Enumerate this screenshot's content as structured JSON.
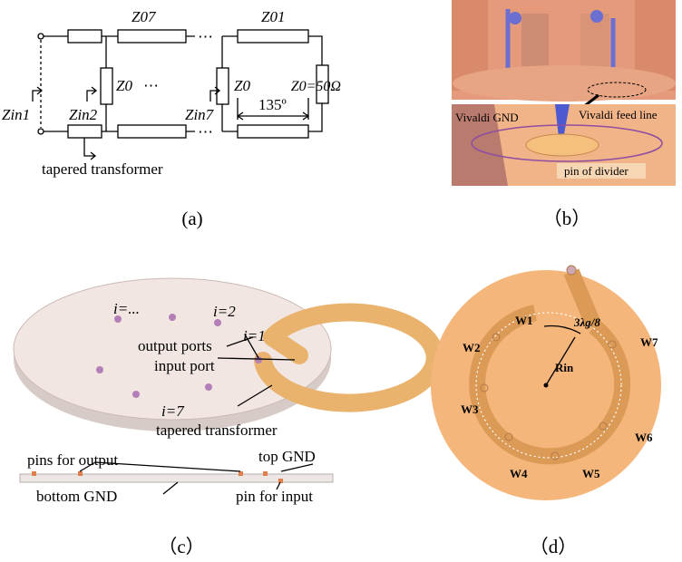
{
  "panel_a": {
    "caption": "(a)",
    "z07": "Z07",
    "z01": "Z01",
    "zin1": "Zin1",
    "zin2": "Zin2",
    "z0_left": "Z0",
    "dots_mid": "⋯",
    "dots_top": "⋯",
    "dots_bottom": "⋯",
    "zin7": "Zin7",
    "z0_right": "Z0",
    "angle": "135º",
    "load": "Z0=50Ω",
    "transformer": "tapered transformer"
  },
  "panel_b": {
    "caption": "（b）",
    "gnd": "Vivaldi GND",
    "feed": "Vivaldi feed line",
    "pin": "pin of divider"
  },
  "panel_c": {
    "caption": "（c）",
    "i_dots": "i=...",
    "i2": "i=2",
    "i1": "i=1",
    "output_ports": "output ports",
    "input_port": "input port",
    "i7": "i=7",
    "transformer": "tapered transformer",
    "pins_output": "pins for output",
    "top_gnd": "top GND",
    "bottom_gnd": "bottom GND",
    "pin_input": "pin for input"
  },
  "panel_d": {
    "caption": "（d）",
    "w1": "W1",
    "w2": "W2",
    "w3": "W3",
    "w4": "W4",
    "w5": "W5",
    "w6": "W6",
    "w7": "W7",
    "arc": "3λg/8",
    "radius": "Rin"
  }
}
